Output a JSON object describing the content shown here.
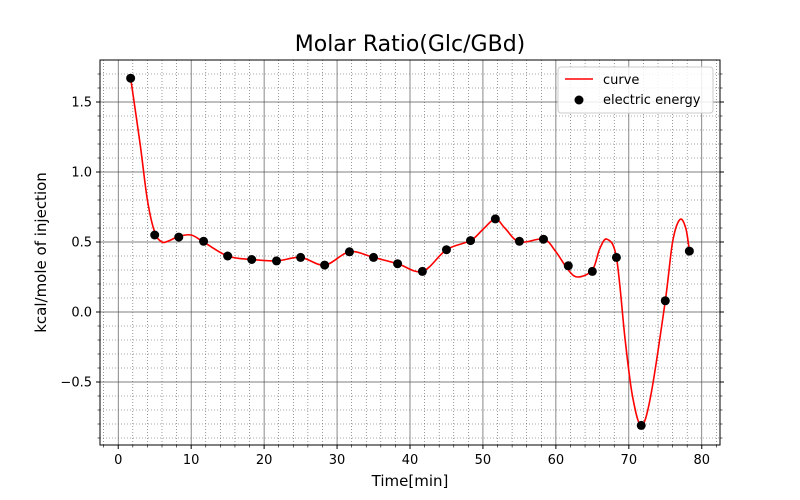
{
  "chart_data": {
    "type": "line",
    "title": "Molar Ratio(Glc/GBd)",
    "xlabel": "Time[min]",
    "ylabel": "kcal/mole of injection",
    "xlim": [
      -2.5,
      82.5
    ],
    "ylim": [
      -0.95,
      1.8
    ],
    "xticks": [
      0,
      10,
      20,
      30,
      40,
      50,
      60,
      70,
      80
    ],
    "xtick_labels": [
      "0",
      "10",
      "20",
      "30",
      "40",
      "50",
      "60",
      "70",
      "80"
    ],
    "yticks": [
      -0.5,
      0.0,
      0.5,
      1.0,
      1.5
    ],
    "ytick_labels": [
      "−0.5",
      "0.0",
      "0.5",
      "1.0",
      "1.5"
    ],
    "grid": true,
    "minor_grid": true,
    "legend_position": "upper right",
    "series": [
      {
        "name": "curve",
        "kind": "line",
        "color": "#ff0000",
        "x": [
          1.7,
          3.0,
          4.0,
          5.0,
          6.0,
          7.0,
          8.3,
          10.0,
          11.7,
          15.0,
          18.3,
          21.7,
          25.0,
          28.3,
          31.7,
          35.0,
          38.3,
          41.7,
          45.0,
          48.3,
          50.0,
          51.7,
          53.0,
          55.0,
          58.3,
          60.0,
          61.7,
          63.0,
          65.0,
          66.0,
          67.0,
          68.3,
          69.5,
          70.5,
          71.7,
          73.0,
          75.0,
          76.0,
          77.0,
          77.8,
          78.3
        ],
        "y": [
          1.67,
          1.2,
          0.8,
          0.57,
          0.5,
          0.51,
          0.54,
          0.55,
          0.5,
          0.4,
          0.375,
          0.365,
          0.39,
          0.335,
          0.43,
          0.39,
          0.345,
          0.29,
          0.445,
          0.51,
          0.59,
          0.665,
          0.6,
          0.5,
          0.52,
          0.43,
          0.3,
          0.25,
          0.3,
          0.45,
          0.52,
          0.39,
          -0.2,
          -0.6,
          -0.81,
          -0.6,
          0.08,
          0.5,
          0.66,
          0.6,
          0.44
        ]
      },
      {
        "name": "electric energy",
        "kind": "scatter",
        "color": "#000000",
        "x": [
          1.7,
          5.0,
          8.3,
          11.7,
          15.0,
          18.3,
          21.7,
          25.0,
          28.3,
          31.7,
          35.0,
          38.3,
          41.7,
          45.0,
          48.3,
          51.7,
          55.0,
          58.3,
          61.7,
          65.0,
          68.3,
          71.7,
          75.0,
          78.3
        ],
        "y": [
          1.67,
          0.55,
          0.535,
          0.505,
          0.4,
          0.375,
          0.365,
          0.39,
          0.335,
          0.43,
          0.39,
          0.345,
          0.29,
          0.445,
          0.51,
          0.665,
          0.505,
          0.52,
          0.33,
          0.29,
          0.39,
          -0.81,
          0.08,
          0.435
        ]
      }
    ]
  }
}
